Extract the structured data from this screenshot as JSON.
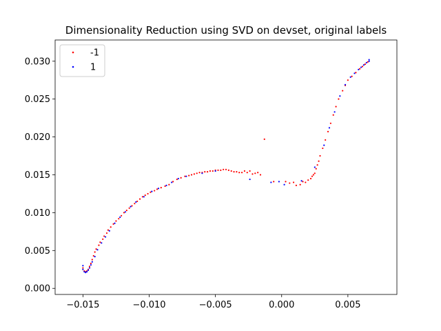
{
  "chart_data": {
    "type": "scatter",
    "title": "Dimensionality Reduction using SVD on devset, original labels",
    "xlabel": "",
    "ylabel": "",
    "xlim": [
      -0.0171,
      0.0087
    ],
    "ylim": [
      -0.0008,
      0.0328
    ],
    "xticks": [
      -0.015,
      -0.01,
      -0.005,
      0.0,
      0.005
    ],
    "xtick_labels": [
      "−0.015",
      "−0.010",
      "−0.005",
      "0.000",
      "0.005"
    ],
    "yticks": [
      0.0,
      0.005,
      0.01,
      0.015,
      0.02,
      0.025,
      0.03
    ],
    "ytick_labels": [
      "0.000",
      "0.005",
      "0.010",
      "0.015",
      "0.020",
      "0.025",
      "0.030"
    ],
    "grid": false,
    "legend_position": "top-left",
    "series": [
      {
        "name": "-1",
        "color": "#ff0000",
        "points": [
          [
            -0.015,
            0.0027
          ],
          [
            -0.0149,
            0.0023
          ],
          [
            -0.0148,
            0.0022
          ],
          [
            -0.0147,
            0.0023
          ],
          [
            -0.0146,
            0.0025
          ],
          [
            -0.0145,
            0.0029
          ],
          [
            -0.0144,
            0.0033
          ],
          [
            -0.0143,
            0.0038
          ],
          [
            -0.0142,
            0.0043
          ],
          [
            -0.0141,
            0.0048
          ],
          [
            -0.014,
            0.0052
          ],
          [
            -0.0138,
            0.0057
          ],
          [
            -0.0137,
            0.0061
          ],
          [
            -0.0135,
            0.0065
          ],
          [
            -0.0134,
            0.0069
          ],
          [
            -0.0132,
            0.0073
          ],
          [
            -0.0131,
            0.0077
          ],
          [
            -0.0129,
            0.0081
          ],
          [
            -0.0127,
            0.0085
          ],
          [
            -0.0125,
            0.0089
          ],
          [
            -0.0123,
            0.0092
          ],
          [
            -0.0121,
            0.0096
          ],
          [
            -0.0119,
            0.01
          ],
          [
            -0.0117,
            0.0103
          ],
          [
            -0.0115,
            0.0106
          ],
          [
            -0.0113,
            0.0109
          ],
          [
            -0.0111,
            0.0112
          ],
          [
            -0.0109,
            0.0115
          ],
          [
            -0.0107,
            0.0118
          ],
          [
            -0.0105,
            0.0121
          ],
          [
            -0.0103,
            0.0123
          ],
          [
            -0.0101,
            0.0125
          ],
          [
            -0.0099,
            0.0127
          ],
          [
            -0.0096,
            0.0129
          ],
          [
            -0.0094,
            0.0131
          ],
          [
            -0.0091,
            0.0133
          ],
          [
            -0.0088,
            0.0135
          ],
          [
            -0.0085,
            0.0137
          ],
          [
            -0.0082,
            0.0141
          ],
          [
            -0.0079,
            0.0144
          ],
          [
            -0.0076,
            0.0146
          ],
          [
            -0.0073,
            0.0148
          ],
          [
            -0.007,
            0.0149
          ],
          [
            -0.0068,
            0.015
          ],
          [
            -0.0066,
            0.0151
          ],
          [
            -0.0064,
            0.0152
          ],
          [
            -0.0062,
            0.0153
          ],
          [
            -0.006,
            0.0153
          ],
          [
            -0.0058,
            0.0154
          ],
          [
            -0.0056,
            0.0154
          ],
          [
            -0.0054,
            0.0155
          ],
          [
            -0.0052,
            0.0155
          ],
          [
            -0.005,
            0.0156
          ],
          [
            -0.0048,
            0.0156
          ],
          [
            -0.0046,
            0.0156
          ],
          [
            -0.0044,
            0.0157
          ],
          [
            -0.0042,
            0.0157
          ],
          [
            -0.004,
            0.0156
          ],
          [
            -0.0038,
            0.0155
          ],
          [
            -0.0036,
            0.0154
          ],
          [
            -0.0034,
            0.0154
          ],
          [
            -0.0032,
            0.0153
          ],
          [
            -0.003,
            0.0153
          ],
          [
            -0.0028,
            0.0155
          ],
          [
            -0.0026,
            0.0153
          ],
          [
            -0.0024,
            0.0155
          ],
          [
            -0.0022,
            0.0151
          ],
          [
            -0.002,
            0.0152
          ],
          [
            -0.0018,
            0.0153
          ],
          [
            -0.0016,
            0.015
          ],
          [
            -0.0013,
            0.0197
          ],
          [
            -0.0006,
            0.0141
          ],
          [
            0.0003,
            0.0141
          ],
          [
            0.0006,
            0.0139
          ],
          [
            0.0009,
            0.014
          ],
          [
            0.0011,
            0.0136
          ],
          [
            0.0014,
            0.0137
          ],
          [
            0.0016,
            0.0141
          ],
          [
            0.0018,
            0.014
          ],
          [
            0.002,
            0.0143
          ],
          [
            0.0022,
            0.0145
          ],
          [
            0.0023,
            0.0148
          ],
          [
            0.0024,
            0.015
          ],
          [
            0.0025,
            0.0152
          ],
          [
            0.0026,
            0.0158
          ],
          [
            0.0027,
            0.0163
          ],
          [
            0.0028,
            0.0168
          ],
          [
            0.0029,
            0.0175
          ],
          [
            0.0031,
            0.0185
          ],
          [
            0.0033,
            0.0196
          ],
          [
            0.0035,
            0.0207
          ],
          [
            0.0037,
            0.0218
          ],
          [
            0.0039,
            0.0229
          ],
          [
            0.0041,
            0.024
          ],
          [
            0.0043,
            0.025
          ],
          [
            0.0046,
            0.0261
          ],
          [
            0.0048,
            0.0268
          ],
          [
            0.005,
            0.0275
          ],
          [
            0.0053,
            0.028
          ],
          [
            0.0056,
            0.0285
          ],
          [
            0.0059,
            0.029
          ],
          [
            0.0061,
            0.0293
          ],
          [
            0.0063,
            0.0296
          ],
          [
            0.0065,
            0.0299
          ]
        ]
      },
      {
        "name": "1",
        "color": "#0000ff",
        "points": [
          [
            -0.015,
            0.003
          ],
          [
            -0.015,
            0.0025
          ],
          [
            -0.0149,
            0.0022
          ],
          [
            -0.0148,
            0.0021
          ],
          [
            -0.0147,
            0.0022
          ],
          [
            -0.0146,
            0.0024
          ],
          [
            -0.0145,
            0.0027
          ],
          [
            -0.0144,
            0.0031
          ],
          [
            -0.0143,
            0.0035
          ],
          [
            -0.0141,
            0.0042
          ],
          [
            -0.0139,
            0.0051
          ],
          [
            -0.0136,
            0.006
          ],
          [
            -0.0133,
            0.0068
          ],
          [
            -0.013,
            0.0076
          ],
          [
            -0.0126,
            0.0086
          ],
          [
            -0.0122,
            0.0094
          ],
          [
            -0.0118,
            0.0101
          ],
          [
            -0.0114,
            0.0108
          ],
          [
            -0.011,
            0.0114
          ],
          [
            -0.0104,
            0.0121
          ],
          [
            -0.0098,
            0.0128
          ],
          [
            -0.0093,
            0.0132
          ],
          [
            -0.0087,
            0.0136
          ],
          [
            -0.0083,
            0.014
          ],
          [
            -0.0078,
            0.0145
          ],
          [
            -0.0072,
            0.0148
          ],
          [
            -0.006,
            0.0152
          ],
          [
            -0.005,
            0.0155
          ],
          [
            -0.0024,
            0.0144
          ],
          [
            -0.0008,
            0.014
          ],
          [
            -0.0002,
            0.0141
          ],
          [
            0.0002,
            0.0137
          ],
          [
            0.0015,
            0.0142
          ],
          [
            0.0025,
            0.016
          ],
          [
            0.0032,
            0.0189
          ],
          [
            0.0036,
            0.0212
          ],
          [
            0.004,
            0.0233
          ],
          [
            0.0044,
            0.0254
          ],
          [
            0.0048,
            0.0269
          ],
          [
            0.0052,
            0.0279
          ],
          [
            0.0055,
            0.0284
          ],
          [
            0.0058,
            0.0289
          ],
          [
            0.006,
            0.0292
          ],
          [
            0.0062,
            0.0295
          ],
          [
            0.0064,
            0.0298
          ],
          [
            0.0066,
            0.03
          ],
          [
            0.0066,
            0.0302
          ]
        ]
      }
    ]
  }
}
